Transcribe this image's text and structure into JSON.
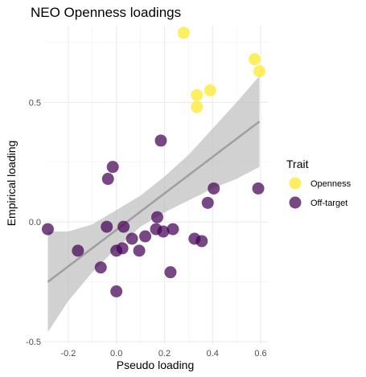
{
  "chart_data": {
    "type": "scatter",
    "title": "NEO Openness loadings",
    "xlabel": "Pseudo loading",
    "ylabel": "Empirical loading",
    "xlim": [
      -0.3,
      0.63
    ],
    "ylim": [
      -0.51,
      0.82
    ],
    "x_ticks": [
      -0.2,
      0.0,
      0.2,
      0.4,
      0.6
    ],
    "x_tick_labels": [
      "-0.2",
      "0.0",
      "0.2",
      "0.4",
      "0.6"
    ],
    "y_ticks": [
      -0.5,
      0.0,
      0.5
    ],
    "y_tick_labels": [
      "-0.5",
      "0.0",
      "0.5"
    ],
    "grid": true,
    "legend": {
      "title": "Trait",
      "position": "right",
      "entries": [
        {
          "label": "Openness",
          "color": "#fde725"
        },
        {
          "label": "Off-target",
          "color": "#440154"
        }
      ]
    },
    "series": [
      {
        "name": "Openness",
        "color": "#fde725",
        "points": [
          {
            "x": 0.28,
            "y": 0.79
          },
          {
            "x": 0.575,
            "y": 0.68
          },
          {
            "x": 0.595,
            "y": 0.63
          },
          {
            "x": 0.39,
            "y": 0.55
          },
          {
            "x": 0.335,
            "y": 0.53
          },
          {
            "x": 0.335,
            "y": 0.48
          }
        ]
      },
      {
        "name": "Off-target",
        "color": "#440154",
        "points": [
          {
            "x": 0.185,
            "y": 0.34
          },
          {
            "x": -0.015,
            "y": 0.23
          },
          {
            "x": -0.035,
            "y": 0.18
          },
          {
            "x": 0.405,
            "y": 0.14
          },
          {
            "x": 0.59,
            "y": 0.14
          },
          {
            "x": 0.38,
            "y": 0.08
          },
          {
            "x": 0.17,
            "y": 0.02
          },
          {
            "x": -0.04,
            "y": -0.02
          },
          {
            "x": 0.03,
            "y": -0.02
          },
          {
            "x": 0.165,
            "y": -0.03
          },
          {
            "x": 0.235,
            "y": -0.03
          },
          {
            "x": 0.195,
            "y": -0.04
          },
          {
            "x": 0.12,
            "y": -0.06
          },
          {
            "x": 0.065,
            "y": -0.07
          },
          {
            "x": 0.325,
            "y": -0.07
          },
          {
            "x": 0.355,
            "y": -0.08
          },
          {
            "x": -0.285,
            "y": -0.03
          },
          {
            "x": -0.16,
            "y": -0.12
          },
          {
            "x": 0.0,
            "y": -0.12
          },
          {
            "x": 0.025,
            "y": -0.11
          },
          {
            "x": 0.095,
            "y": -0.12
          },
          {
            "x": -0.065,
            "y": -0.19
          },
          {
            "x": 0.225,
            "y": -0.21
          },
          {
            "x": 0.0,
            "y": -0.29
          }
        ]
      }
    ],
    "regression": {
      "method": "linear",
      "line": [
        {
          "x": -0.285,
          "y": -0.25
        },
        {
          "x": 0.595,
          "y": 0.42
        }
      ],
      "ci_band": [
        {
          "x": -0.285,
          "lo": -0.46,
          "hi": -0.04
        },
        {
          "x": -0.2,
          "lo": -0.33,
          "hi": -0.04
        },
        {
          "x": -0.1,
          "lo": -0.21,
          "hi": -0.01
        },
        {
          "x": 0.0,
          "lo": -0.11,
          "hi": 0.05
        },
        {
          "x": 0.1,
          "lo": -0.02,
          "hi": 0.11
        },
        {
          "x": 0.2,
          "lo": 0.04,
          "hi": 0.19
        },
        {
          "x": 0.3,
          "lo": 0.09,
          "hi": 0.28
        },
        {
          "x": 0.4,
          "lo": 0.14,
          "hi": 0.39
        },
        {
          "x": 0.5,
          "lo": 0.18,
          "hi": 0.5
        },
        {
          "x": 0.595,
          "lo": 0.23,
          "hi": 0.61
        }
      ],
      "line_color": "#999999",
      "band_color": "#bdbdbd"
    }
  }
}
